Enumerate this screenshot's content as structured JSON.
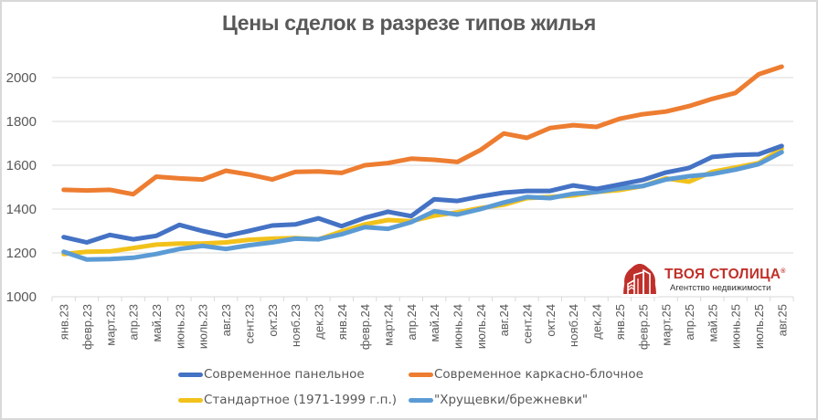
{
  "chart_data": {
    "type": "line",
    "title": "Цены сделок в разрезе типов жилья",
    "xlabel": "",
    "ylabel": "",
    "ylim": [
      1000,
      2000
    ],
    "yticks": [
      1000,
      1200,
      1400,
      1600,
      1800,
      2000
    ],
    "grid": true,
    "legend_position": "bottom",
    "categories": [
      "янв.23",
      "февр.23",
      "март.23",
      "апр.23",
      "май.23",
      "июнь.23",
      "июль.23",
      "авг.23",
      "сент.23",
      "окт.23",
      "нояб.23",
      "дек.23",
      "янв.24",
      "февр.24",
      "март.24",
      "апр.24",
      "май.24",
      "июнь.24",
      "июль.24",
      "авг.24",
      "сент.24",
      "окт.24",
      "нояб.24",
      "дек.24",
      "янв.25",
      "февр.25",
      "март.25",
      "апр.25",
      "май.25",
      "июнь.25",
      "июль.25",
      "авг.25"
    ],
    "series": [
      {
        "name": "Стандартное (1971-1999 г.п.)",
        "color": "#f2c21b",
        "values": [
          1195,
          1205,
          1207,
          1222,
          1238,
          1243,
          1243,
          1248,
          1260,
          1265,
          1268,
          1262,
          1298,
          1330,
          1350,
          1345,
          1370,
          1385,
          1405,
          1420,
          1450,
          1455,
          1462,
          1478,
          1487,
          1505,
          1540,
          1525,
          1570,
          1590,
          1610,
          1675
        ]
      },
      {
        "name": "\"Хрущевки/брежневки\"",
        "color": "#5b9bd5",
        "values": [
          1205,
          1170,
          1172,
          1178,
          1195,
          1218,
          1232,
          1218,
          1235,
          1248,
          1265,
          1262,
          1285,
          1318,
          1310,
          1340,
          1390,
          1375,
          1400,
          1430,
          1455,
          1450,
          1470,
          1478,
          1495,
          1505,
          1535,
          1550,
          1560,
          1580,
          1605,
          1660
        ]
      },
      {
        "name": "Современное панельное",
        "color": "#4472c4",
        "values": [
          1272,
          1248,
          1282,
          1262,
          1278,
          1328,
          1300,
          1277,
          1300,
          1325,
          1330,
          1358,
          1322,
          1360,
          1388,
          1368,
          1445,
          1437,
          1458,
          1475,
          1483,
          1483,
          1508,
          1492,
          1512,
          1533,
          1567,
          1588,
          1638,
          1647,
          1650,
          1688
        ]
      },
      {
        "name": "Современное каркасно-блочное",
        "color": "#ed7d31",
        "values": [
          1488,
          1485,
          1488,
          1468,
          1548,
          1540,
          1535,
          1575,
          1558,
          1535,
          1570,
          1572,
          1565,
          1600,
          1610,
          1630,
          1625,
          1615,
          1670,
          1745,
          1725,
          1770,
          1783,
          1775,
          1812,
          1833,
          1845,
          1870,
          1903,
          1930,
          2015,
          2050
        ]
      }
    ]
  },
  "legend": {
    "items": [
      {
        "label": "Современное панельное",
        "color": "#4472c4"
      },
      {
        "label": "Современное каркасно-блочное",
        "color": "#ed7d31"
      },
      {
        "label": "Стандартное (1971-1999 г.п.)",
        "color": "#f2c21b"
      },
      {
        "label": "\"Хрущевки/брежневки\"",
        "color": "#5b9bd5"
      }
    ]
  },
  "logo": {
    "name": "ТВОЯ СТОЛИЦА",
    "registered_mark": "®",
    "tagline": "Агентство недвижимости",
    "color": "#c0302a"
  }
}
